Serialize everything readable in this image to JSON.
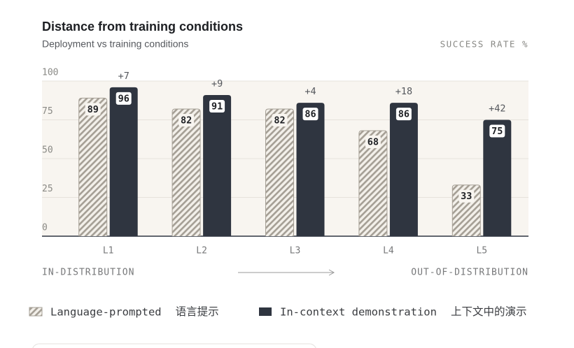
{
  "chart_data": {
    "type": "bar",
    "title": "Distance from training conditions",
    "subtitle": "Deployment vs training conditions",
    "y_label": "SUCCESS RATE %",
    "categories": [
      "L1",
      "L2",
      "L3",
      "L4",
      "L5"
    ],
    "series": [
      {
        "name": "Language-prompted",
        "name_zh": "语言提示",
        "color": "#a59f95",
        "pattern": "hatch",
        "values": [
          89,
          82,
          82,
          68,
          33
        ]
      },
      {
        "name": "In-context demonstration",
        "name_zh": "上下文中的演示",
        "color": "#2f3540",
        "values": [
          96,
          91,
          86,
          86,
          75
        ]
      }
    ],
    "annotations": [
      "+7",
      "+9",
      "+4",
      "+18",
      "+42"
    ],
    "ylim": [
      0,
      100
    ],
    "yticks": [
      0,
      25,
      50,
      75,
      100
    ],
    "grid": true,
    "x_axis_left": "IN-DISTRIBUTION",
    "x_axis_right": "OUT-OF-DISTRIBUTION"
  }
}
